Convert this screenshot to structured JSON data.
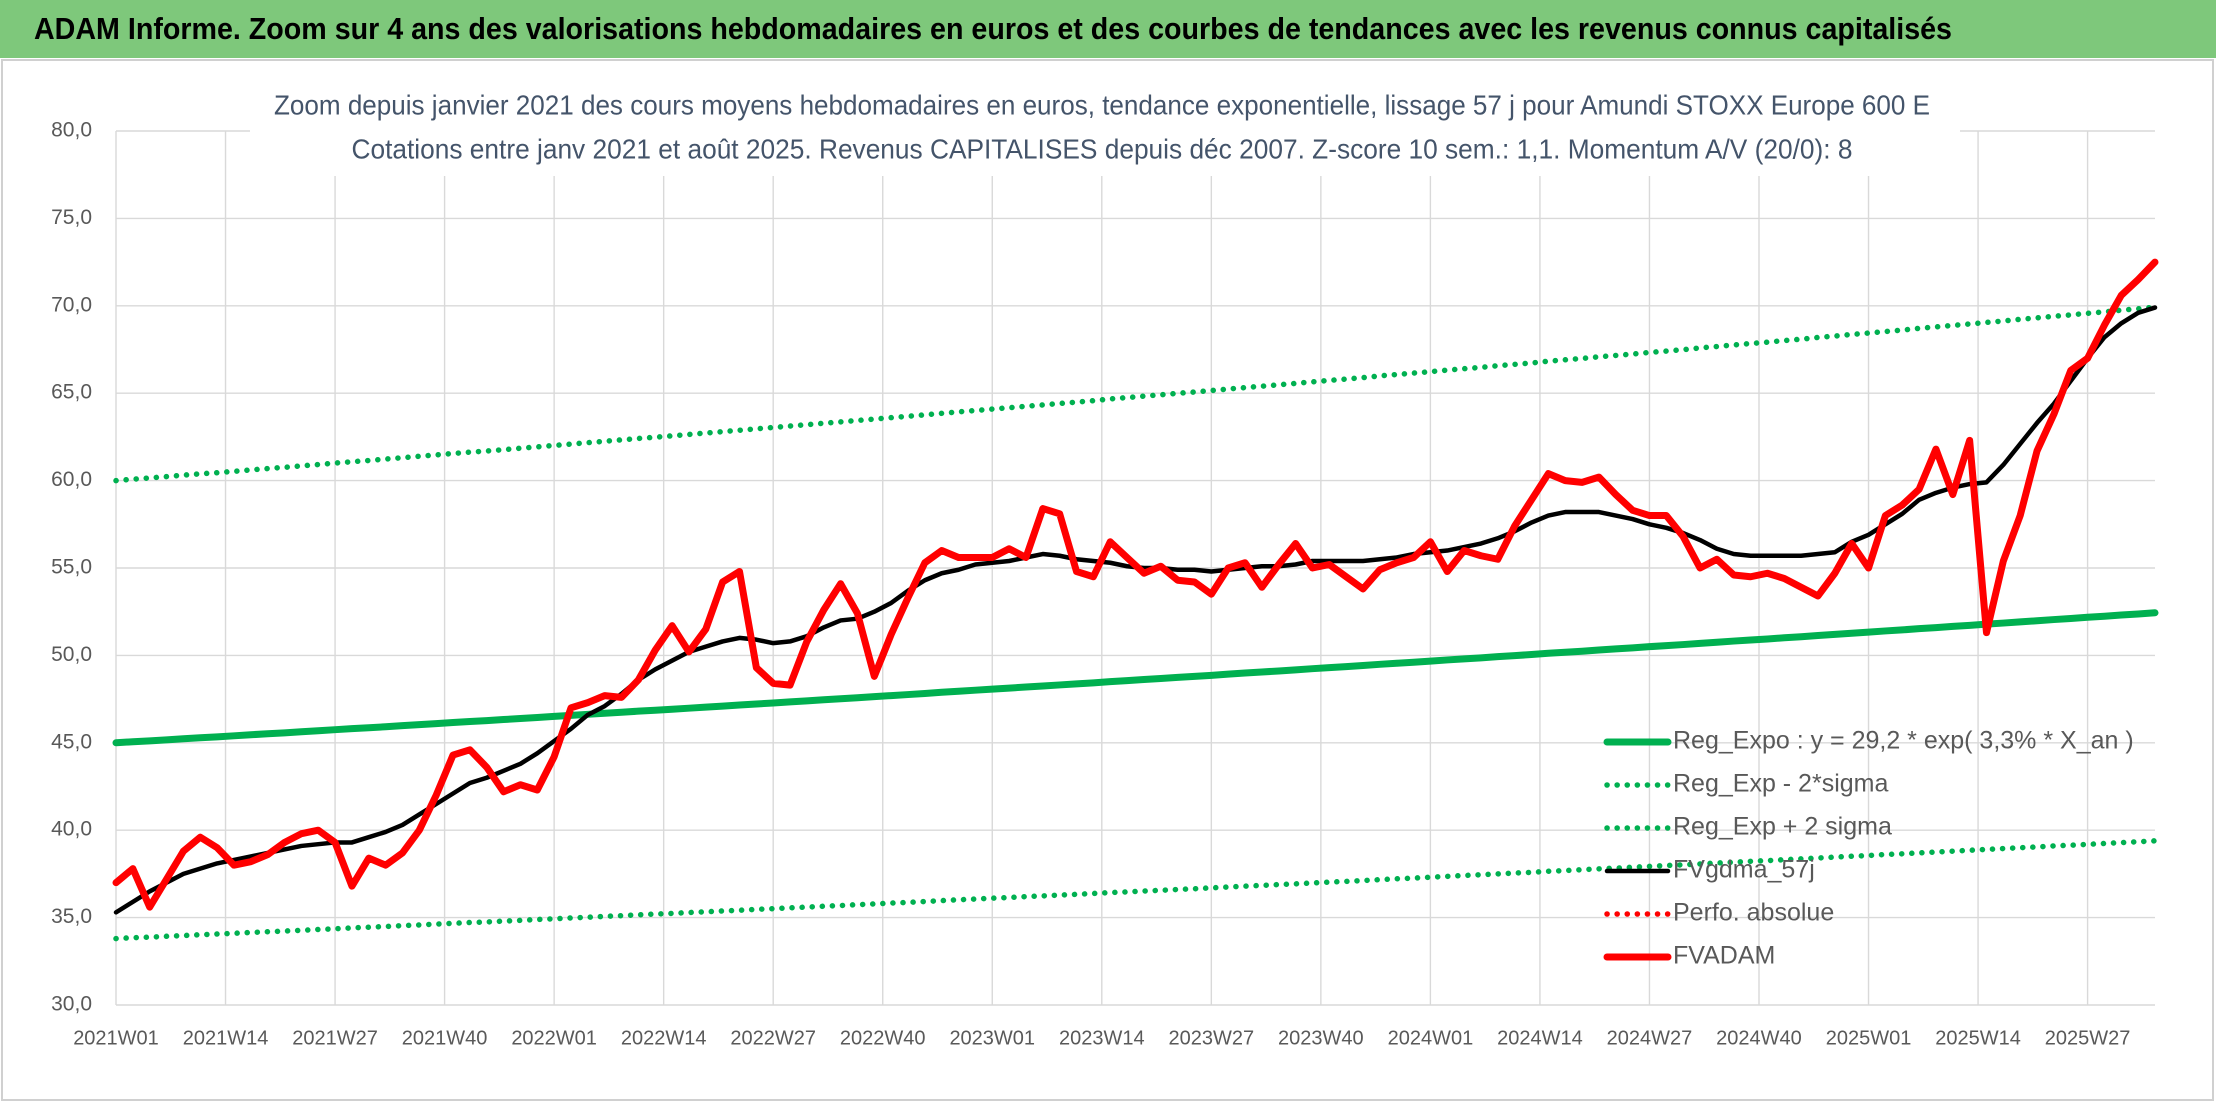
{
  "header": {
    "title": "ADAM Informe. Zoom sur 4 ans des valorisations hebdomadaires en euros et des courbes de tendances avec les revenus connus capitalisés"
  },
  "chart_data": {
    "type": "line",
    "title": "Zoom depuis janvier 2021 des cours moyens hebdomadaires en euros, tendance exponentielle, lissage 57 j pour Amundi STOXX Europe 600 E",
    "subtitle": "Cotations entre janv 2021 et août 2025. Revenus CAPITALISES depuis déc 2007. Z-score 10 sem.: 1,1. Momentum A/V (20/0): 8",
    "x": [
      0,
      2,
      4,
      6,
      8,
      10,
      12,
      14,
      16,
      18,
      20,
      22,
      24,
      26,
      28,
      30,
      32,
      34,
      36,
      38,
      40,
      42,
      44,
      46,
      48,
      50,
      52,
      54,
      56,
      58,
      60,
      62,
      64,
      66,
      68,
      70,
      72,
      74,
      76,
      78,
      80,
      82,
      84,
      86,
      88,
      90,
      92,
      94,
      96,
      98,
      100,
      102,
      104,
      106,
      108,
      110,
      112,
      114,
      116,
      118,
      120,
      122,
      124,
      126,
      128,
      130,
      132,
      134,
      136,
      138,
      140,
      142,
      144,
      146,
      148,
      150,
      152,
      154,
      156,
      158,
      160,
      162,
      164,
      166,
      168,
      170,
      172,
      174,
      176,
      178,
      180,
      182,
      184,
      186,
      188,
      190,
      192,
      194,
      196,
      198,
      200,
      202,
      204,
      206,
      208,
      210,
      212,
      214,
      216,
      218,
      220,
      222,
      224,
      226,
      228,
      230,
      232,
      234,
      236,
      238,
      240,
      242
    ],
    "xlim": [
      0,
      242
    ],
    "xticks": [
      {
        "value": 0,
        "label": "2021W01"
      },
      {
        "value": 13,
        "label": "2021W14"
      },
      {
        "value": 26,
        "label": "2021W27"
      },
      {
        "value": 39,
        "label": "2021W40"
      },
      {
        "value": 52,
        "label": "2022W01"
      },
      {
        "value": 65,
        "label": "2022W14"
      },
      {
        "value": 78,
        "label": "2022W27"
      },
      {
        "value": 91,
        "label": "2022W40"
      },
      {
        "value": 104,
        "label": "2023W01"
      },
      {
        "value": 117,
        "label": "2023W14"
      },
      {
        "value": 130,
        "label": "2023W27"
      },
      {
        "value": 143,
        "label": "2023W40"
      },
      {
        "value": 156,
        "label": "2024W01"
      },
      {
        "value": 169,
        "label": "2024W14"
      },
      {
        "value": 182,
        "label": "2024W27"
      },
      {
        "value": 195,
        "label": "2024W40"
      },
      {
        "value": 208,
        "label": "2025W01"
      },
      {
        "value": 221,
        "label": "2025W14"
      },
      {
        "value": 234,
        "label": "2025W27"
      }
    ],
    "ylim": [
      30,
      80
    ],
    "yticks": [
      {
        "value": 30,
        "label": "30,0"
      },
      {
        "value": 35,
        "label": "35,0"
      },
      {
        "value": 40,
        "label": "40,0"
      },
      {
        "value": 45,
        "label": "45,0"
      },
      {
        "value": 50,
        "label": "50,0"
      },
      {
        "value": 55,
        "label": "55,0"
      },
      {
        "value": 60,
        "label": "60,0"
      },
      {
        "value": 65,
        "label": "65,0"
      },
      {
        "value": 70,
        "label": "70,0"
      },
      {
        "value": 75,
        "label": "75,0"
      },
      {
        "value": 80,
        "label": "80,0"
      }
    ],
    "grid": true,
    "legend": "lower right",
    "series": [
      {
        "name": "Reg_Expo : y = 29,2 * exp( 3,3% * X_an )",
        "color": "#00b050",
        "style": "solid",
        "values": [
          45.0,
          45.06,
          45.11,
          45.17,
          45.23,
          45.29,
          45.34,
          45.4,
          45.46,
          45.52,
          45.57,
          45.63,
          45.69,
          45.75,
          45.81,
          45.86,
          45.92,
          45.98,
          46.04,
          46.1,
          46.16,
          46.22,
          46.27,
          46.33,
          46.39,
          46.45,
          46.51,
          46.57,
          46.63,
          46.69,
          46.75,
          46.81,
          46.86,
          46.92,
          46.98,
          47.04,
          47.1,
          47.16,
          47.22,
          47.28,
          47.34,
          47.4,
          47.46,
          47.52,
          47.58,
          47.64,
          47.7,
          47.76,
          47.82,
          47.89,
          47.95,
          48.01,
          48.07,
          48.13,
          48.19,
          48.25,
          48.31,
          48.37,
          48.43,
          48.5,
          48.56,
          48.62,
          48.68,
          48.74,
          48.8,
          48.86,
          48.93,
          48.99,
          49.05,
          49.11,
          49.17,
          49.24,
          49.3,
          49.36,
          49.42,
          49.49,
          49.55,
          49.61,
          49.67,
          49.74,
          49.8,
          49.86,
          49.93,
          49.99,
          50.05,
          50.12,
          50.18,
          50.24,
          50.31,
          50.37,
          50.43,
          50.5,
          50.56,
          50.62,
          50.69,
          50.75,
          50.82,
          50.88,
          50.94,
          51.01,
          51.07,
          51.14,
          51.2,
          51.27,
          51.33,
          51.4,
          51.46,
          51.53,
          51.59,
          51.66,
          51.72,
          51.79,
          51.85,
          51.92,
          51.98,
          52.05,
          52.11,
          52.18,
          52.24,
          52.31,
          52.37,
          52.44
        ]
      },
      {
        "name": "Reg_Exp - 2*sigma",
        "color": "#00b050",
        "style": "dotted",
        "values": [
          33.8,
          33.85,
          33.88,
          33.93,
          33.97,
          34.02,
          34.06,
          34.1,
          34.15,
          34.19,
          34.23,
          34.27,
          34.32,
          34.36,
          34.41,
          34.45,
          34.49,
          34.54,
          34.58,
          34.63,
          34.67,
          34.72,
          34.75,
          34.8,
          34.84,
          34.89,
          34.93,
          34.98,
          35.02,
          35.07,
          35.11,
          35.16,
          35.2,
          35.24,
          35.29,
          35.33,
          35.38,
          35.42,
          35.47,
          35.51,
          35.56,
          35.6,
          35.65,
          35.69,
          35.74,
          35.78,
          35.83,
          35.87,
          35.92,
          35.97,
          36.02,
          36.06,
          36.11,
          36.15,
          36.2,
          36.24,
          36.29,
          36.33,
          36.38,
          36.43,
          36.47,
          36.52,
          36.56,
          36.61,
          36.65,
          36.7,
          36.75,
          36.8,
          36.84,
          36.89,
          36.93,
          36.98,
          37.03,
          37.07,
          37.12,
          37.17,
          37.22,
          37.26,
          37.31,
          37.36,
          37.41,
          37.45,
          37.5,
          37.55,
          37.59,
          37.65,
          37.69,
          37.74,
          37.79,
          37.83,
          37.88,
          37.93,
          37.98,
          38.02,
          38.07,
          38.12,
          38.17,
          38.22,
          38.26,
          38.31,
          38.36,
          38.41,
          38.46,
          38.51,
          38.55,
          38.61,
          38.65,
          38.7,
          38.75,
          38.8,
          38.85,
          38.9,
          38.95,
          39.0,
          39.04,
          39.1,
          39.14,
          39.19,
          39.24,
          39.29,
          39.34,
          39.39
        ]
      },
      {
        "name": "Reg_Exp + 2 sigma",
        "color": "#00b050",
        "style": "dotted",
        "values": [
          60.0,
          60.08,
          60.15,
          60.23,
          60.31,
          60.39,
          60.45,
          60.53,
          60.61,
          60.69,
          60.76,
          60.84,
          60.92,
          61.0,
          61.08,
          61.15,
          61.23,
          61.31,
          61.39,
          61.47,
          61.55,
          61.63,
          61.69,
          61.77,
          61.85,
          61.93,
          62.01,
          62.09,
          62.17,
          62.25,
          62.33,
          62.41,
          62.48,
          62.56,
          62.64,
          62.72,
          62.8,
          62.88,
          62.96,
          63.04,
          63.12,
          63.2,
          63.28,
          63.36,
          63.44,
          63.52,
          63.6,
          63.68,
          63.76,
          63.85,
          63.93,
          64.01,
          64.09,
          64.17,
          64.25,
          64.33,
          64.41,
          64.49,
          64.57,
          64.67,
          64.75,
          64.83,
          64.91,
          64.99,
          65.07,
          65.15,
          65.24,
          65.32,
          65.4,
          65.48,
          65.56,
          65.65,
          65.73,
          65.81,
          65.89,
          65.99,
          66.07,
          66.15,
          66.23,
          66.32,
          66.4,
          66.48,
          66.57,
          66.65,
          66.73,
          66.83,
          66.91,
          66.99,
          67.08,
          67.16,
          67.24,
          67.33,
          67.41,
          67.49,
          67.59,
          67.67,
          67.76,
          67.84,
          67.92,
          68.01,
          68.09,
          68.19,
          68.27,
          68.36,
          68.44,
          68.53,
          68.61,
          68.71,
          68.79,
          68.88,
          68.96,
          69.05,
          69.13,
          69.23,
          69.31,
          69.4,
          69.48,
          69.57,
          69.65,
          69.75,
          69.83,
          69.92
        ]
      },
      {
        "name": "FVgdma_57j",
        "color": "#000000",
        "style": "solid",
        "values": [
          35.3,
          35.9,
          36.5,
          37.0,
          37.5,
          37.8,
          38.1,
          38.3,
          38.5,
          38.7,
          38.9,
          39.1,
          39.2,
          39.3,
          39.3,
          39.6,
          39.9,
          40.3,
          40.9,
          41.5,
          42.1,
          42.7,
          43.0,
          43.4,
          43.8,
          44.4,
          45.1,
          45.8,
          46.6,
          47.1,
          47.8,
          48.6,
          49.2,
          49.7,
          50.2,
          50.5,
          50.8,
          51.0,
          50.9,
          50.7,
          50.8,
          51.1,
          51.6,
          52.0,
          52.1,
          52.5,
          53.0,
          53.7,
          54.3,
          54.7,
          54.9,
          55.2,
          55.3,
          55.4,
          55.6,
          55.8,
          55.7,
          55.5,
          55.4,
          55.3,
          55.1,
          55.0,
          55.0,
          54.9,
          54.9,
          54.8,
          54.9,
          55.0,
          55.1,
          55.1,
          55.2,
          55.4,
          55.4,
          55.4,
          55.4,
          55.5,
          55.6,
          55.8,
          55.9,
          56.0,
          56.2,
          56.4,
          56.7,
          57.1,
          57.6,
          58.0,
          58.2,
          58.2,
          58.2,
          58.0,
          57.8,
          57.5,
          57.3,
          57.0,
          56.6,
          56.1,
          55.8,
          55.7,
          55.7,
          55.7,
          55.7,
          55.8,
          55.9,
          56.5,
          56.9,
          57.5,
          58.1,
          58.9,
          59.3,
          59.6,
          59.8,
          59.9,
          60.9,
          62.1,
          63.3,
          64.4,
          65.7,
          67.0,
          68.2,
          69.0,
          69.6,
          69.9
        ]
      },
      {
        "name": "Perfo. absolue",
        "color": "#ff0000",
        "style": "dotted",
        "values": [
          null,
          null,
          null,
          null,
          null,
          null,
          null,
          null,
          null,
          null,
          null,
          null,
          null,
          null,
          null,
          null,
          null,
          null,
          null,
          null,
          null,
          null,
          null,
          null,
          null,
          null,
          null,
          null,
          null,
          null,
          null,
          null,
          null,
          null,
          null,
          null,
          null,
          null,
          null,
          null,
          null,
          null,
          null,
          null,
          null,
          null,
          null,
          null,
          null,
          null,
          null,
          null,
          null,
          null,
          null,
          null,
          null,
          null,
          null,
          null,
          null,
          null,
          null,
          null,
          null,
          null,
          null,
          null,
          null,
          null,
          null,
          null,
          null,
          null,
          null,
          null,
          null,
          null,
          null,
          null,
          null,
          null,
          null,
          null,
          null,
          null,
          null,
          null,
          null,
          null,
          null,
          null,
          null,
          null,
          null,
          null,
          null,
          null,
          null,
          null,
          null,
          null,
          null,
          null,
          null,
          null,
          null,
          null,
          null,
          null,
          null,
          null,
          null,
          null,
          null,
          null,
          null,
          null,
          null,
          null,
          null,
          null
        ]
      },
      {
        "name": "FVADAM",
        "color": "#ff0000",
        "style": "solid",
        "values": [
          37.0,
          37.8,
          35.6,
          37.2,
          38.8,
          39.6,
          39.0,
          38.0,
          38.2,
          38.6,
          39.3,
          39.8,
          40.0,
          39.3,
          36.8,
          38.4,
          38.0,
          38.7,
          40.0,
          42.0,
          44.3,
          44.6,
          43.6,
          42.2,
          42.6,
          42.3,
          44.2,
          47.0,
          47.3,
          47.7,
          47.6,
          48.6,
          50.3,
          51.7,
          50.2,
          51.5,
          54.2,
          54.8,
          49.3,
          48.4,
          48.3,
          50.8,
          52.6,
          54.1,
          52.4,
          48.8,
          51.2,
          53.3,
          55.3,
          56.0,
          55.6,
          55.6,
          55.6,
          56.1,
          55.6,
          58.4,
          58.1,
          54.8,
          54.5,
          56.5,
          55.6,
          54.7,
          55.1,
          54.3,
          54.2,
          53.5,
          55.0,
          55.3,
          53.9,
          55.2,
          56.4,
          55.0,
          55.2,
          54.5,
          53.8,
          54.9,
          55.3,
          55.6,
          56.5,
          54.8,
          56.0,
          55.7,
          55.5,
          57.4,
          58.9,
          60.4,
          60.0,
          59.9,
          60.2,
          59.2,
          58.3,
          58.0,
          58.0,
          56.8,
          55.0,
          55.5,
          54.6,
          54.5,
          54.7,
          54.4,
          53.9,
          53.4,
          54.7,
          56.4,
          55.0,
          58.0,
          58.6,
          59.5,
          61.8,
          59.2,
          62.3,
          51.3,
          55.4,
          58.0,
          61.7,
          63.8,
          66.3,
          67.0,
          68.9,
          70.6,
          71.5,
          72.5
        ]
      }
    ]
  }
}
